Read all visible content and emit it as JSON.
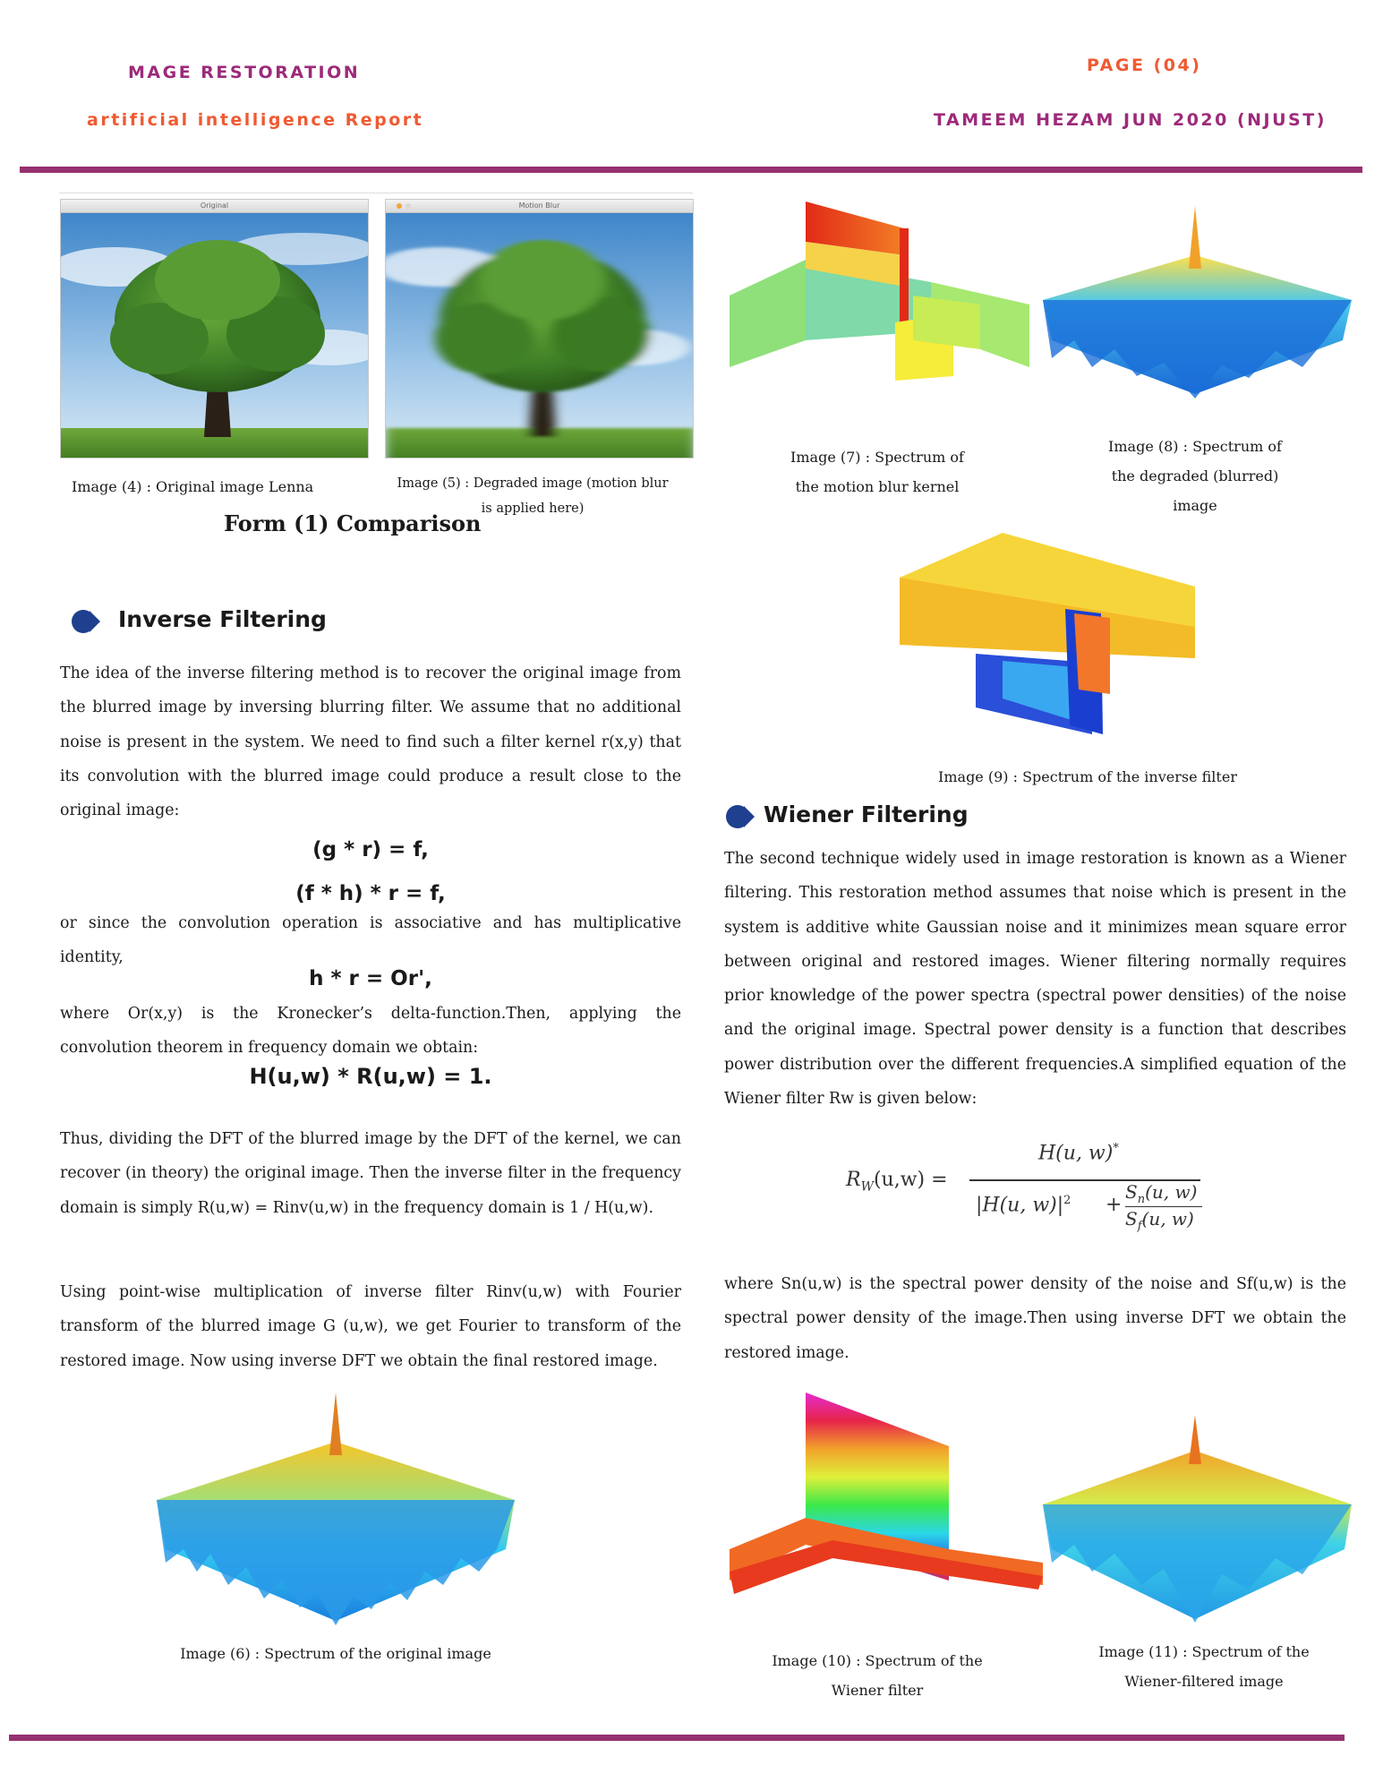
{
  "header": {
    "title_left": "MAGE RESTORATION",
    "subtitle_left": "artificial intelligence Report",
    "page_label": "PAGE (04)",
    "author_line": "TAMEEM HEZAM JUN 2020 (NJUST)"
  },
  "colors": {
    "purple": "#9c2a7a",
    "orange": "#ef5a32",
    "rule": "#96306f",
    "bullet": "#1f3f8f"
  },
  "figures": {
    "img4_window_title": "Original",
    "img5_window_title": "Motion Blur",
    "img4_caption": "Image (4) :  Original image Lenna",
    "img5_caption_1": "Image (5) :  Degraded image (motion blur",
    "img5_caption_2": "is applied here)",
    "form_title": "Form (1) Comparison",
    "img7_caption_1": "Image (7) : Spectrum of",
    "img7_caption_2": "the motion blur kernel",
    "img8_caption_1": "Image (8) : Spectrum of",
    "img8_caption_2": "the degraded (blurred)",
    "img8_caption_3": "image",
    "img9_caption": "Image (9) :  Spectrum of the inverse filter",
    "img6_caption": "Image (6) :  Spectrum of the original image",
    "img10_caption_1": "Image (10) :  Spectrum of the",
    "img10_caption_2": "Wiener filter",
    "img11_caption_1": "Image (11) :  Spectrum of the",
    "img11_caption_2": "Wiener-filtered image"
  },
  "inverse": {
    "heading": "Inverse Filtering",
    "p1": "The idea of the inverse filtering method is to recover the original image from the blurred image by inversing blurring filter. We assume that no additional noise is present in the system. We need to find such a filter kernel r(x,y) that its convolution with the blurred image could produce a result close to the original image:",
    "eq1": "(g * r) = f,",
    "eq2": "(f * h) * r = f,",
    "p2": "or since the convolution operation is associative and has multiplicative identity,",
    "eq3": "h * r = Or',",
    "p3": "where Or(x,y) is the Kronecker’s delta-function.Then, applying the convolution theorem in frequency domain we obtain:",
    "eq4": "H(u,w) * R(u,w) = 1.",
    "p4": "Thus, dividing the DFT of the blurred image by the DFT of the kernel, we can recover (in theory) the original image. Then the inverse filter in the frequency domain is simply R(u,w) = Rinv(u,w) in the frequency domain is  1 / H(u,w).",
    "p5": "Using point-wise multiplication of inverse filter Rinv(u,w) with Fourier transform of the blurred image G (u,w), we get Fourier to transform of the restored image. Now using inverse DFT we obtain the final restored image."
  },
  "wiener": {
    "heading": "Wiener Filtering",
    "p1": "The second technique widely used in image restoration is known as a Wiener filtering. This restoration method assumes that noise which is present in the system is additive white Gaussian noise and it minimizes mean square error between original and restored images. Wiener filtering normally requires prior knowledge of the power spectra (spectral power densities) of the noise and the original image. Spectral power density is a function that describes power distribution over the different frequencies.A simplified equation of the Wiener filter Rw is given below:",
    "formula_lhs": "R",
    "formula_lhs_sub": "W",
    "formula_lhs_args": "(u,w) =",
    "formula_num": "H(u, w)",
    "formula_num_sup": "*",
    "formula_den_a": "|H(u, w)|",
    "formula_den_a_sup": "2",
    "formula_plus": "+",
    "formula_sn": "S",
    "formula_sn_sub": "n",
    "formula_sn_args": "(u, w)",
    "formula_sf": "S",
    "formula_sf_sub": "f",
    "formula_sf_args": "(u, w)",
    "p2": "where Sn(u,w) is the spectral power density of the noise and Sf(u,w) is the spectral power density of the image.Then using inverse DFT we obtain the restored image."
  }
}
